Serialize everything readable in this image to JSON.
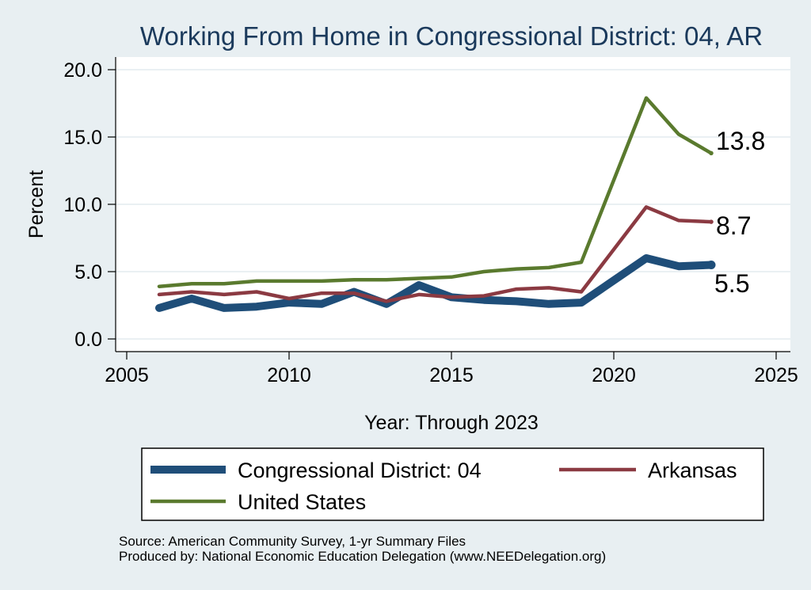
{
  "chart_data": {
    "type": "line",
    "title": "Working From Home in Congressional District: 04, AR",
    "xlabel": "Year: Through 2023",
    "ylabel": "Percent",
    "xlim": [
      2005,
      2025
    ],
    "ylim": [
      0,
      20
    ],
    "x_ticks": [
      "2005",
      "2010",
      "2015",
      "2020",
      "2025"
    ],
    "y_ticks": [
      "0.0",
      "5.0",
      "10.0",
      "15.0",
      "20.0"
    ],
    "grid": true,
    "legend_position": "bottom",
    "series": [
      {
        "name": "Congressional District: 04",
        "color": "#1f4e79",
        "x": [
          2006,
          2007,
          2008,
          2009,
          2010,
          2011,
          2012,
          2013,
          2014,
          2015,
          2016,
          2017,
          2018,
          2019,
          2021,
          2022,
          2023
        ],
        "values": [
          2.3,
          3.0,
          2.3,
          2.4,
          2.7,
          2.6,
          3.5,
          2.6,
          4.0,
          3.1,
          2.9,
          2.8,
          2.6,
          2.7,
          6.0,
          5.4,
          5.5
        ],
        "end_label": "5.5"
      },
      {
        "name": "Arkansas",
        "color": "#8b3a42",
        "x": [
          2006,
          2007,
          2008,
          2009,
          2010,
          2011,
          2012,
          2013,
          2014,
          2015,
          2016,
          2017,
          2018,
          2019,
          2021,
          2022,
          2023
        ],
        "values": [
          3.3,
          3.5,
          3.3,
          3.5,
          3.0,
          3.4,
          3.4,
          2.8,
          3.3,
          3.1,
          3.2,
          3.7,
          3.8,
          3.5,
          9.8,
          8.8,
          8.7
        ],
        "end_label": "8.7"
      },
      {
        "name": "United States",
        "color": "#5a7a2e",
        "x": [
          2006,
          2007,
          2008,
          2009,
          2010,
          2011,
          2012,
          2013,
          2014,
          2015,
          2016,
          2017,
          2018,
          2019,
          2021,
          2022,
          2023
        ],
        "values": [
          3.9,
          4.1,
          4.1,
          4.3,
          4.3,
          4.3,
          4.4,
          4.4,
          4.5,
          4.6,
          5.0,
          5.2,
          5.3,
          5.7,
          17.9,
          15.2,
          13.8
        ],
        "end_label": "13.8"
      }
    ]
  },
  "footer": {
    "source": "Source: American Community Survey, 1-yr Summary Files",
    "produced_by": "Produced by: National Economic Education Delegation (www.NEEDelegation.org)"
  }
}
